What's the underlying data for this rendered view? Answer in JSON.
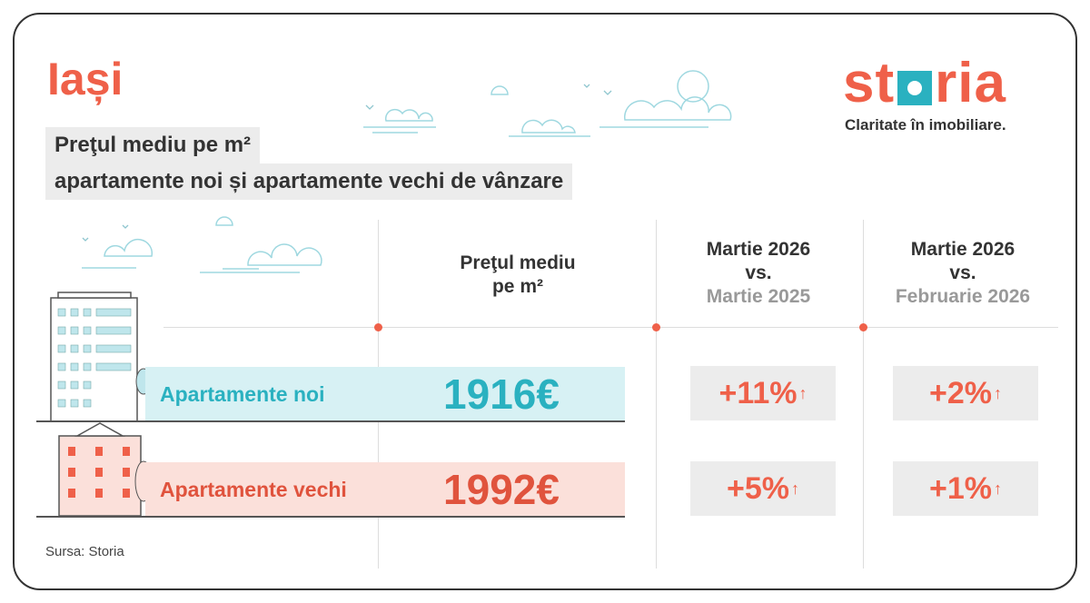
{
  "header": {
    "city": "Iași",
    "subtitle_line1": "Preţul mediu pe m²",
    "subtitle_line2": "apartamente noi și apartamente vechi de vânzare"
  },
  "brand": {
    "logo_pre": "st",
    "logo_post": "ria",
    "tagline": "Claritate în imobiliare."
  },
  "columns": {
    "price": {
      "line1": "Preţul mediu",
      "line2": "pe m²"
    },
    "yoy": {
      "line1": "Martie 2026",
      "line2": "vs.",
      "line3": "Martie 2025"
    },
    "mom": {
      "line1": "Martie 2026",
      "line2": "vs.",
      "line3": "Februarie 2026"
    }
  },
  "rows": [
    {
      "label": "Apartamente noi",
      "price": "1916€",
      "yoy": "+11%",
      "mom": "+2%",
      "arrow": "↑"
    },
    {
      "label": "Apartamente vechi",
      "price": "1992€",
      "yoy": "+5%",
      "mom": "+1%",
      "arrow": "↑"
    }
  ],
  "source": "Sursa: Storia",
  "colors": {
    "accent": "#ef6049",
    "teal": "#2ab1c0",
    "teal_bg": "#d7f1f4",
    "pink_bg": "#fbe0da",
    "box": "#ececec"
  }
}
